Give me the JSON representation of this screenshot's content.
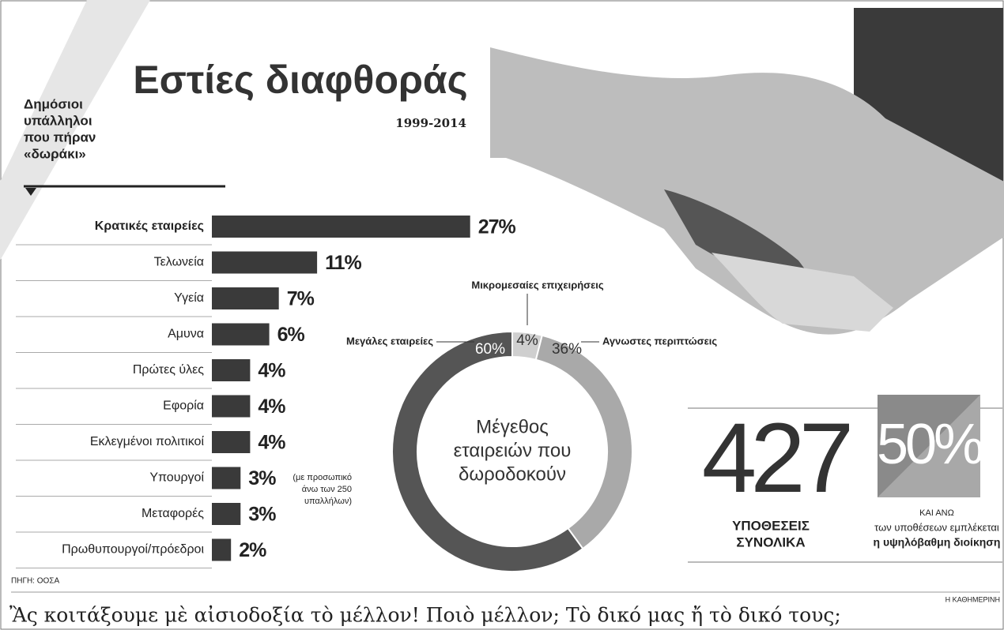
{
  "header": {
    "title": "Εστίες διαφθοράς",
    "subtitle": "1999-2014",
    "side_label": [
      "Δημόσιοι",
      "υπάλληλοι",
      "που πήραν",
      "«δωράκι»"
    ]
  },
  "chart_data": [
    {
      "type": "bar",
      "orientation": "horizontal",
      "color": "#3a3a3a",
      "categories": [
        "Κρατικές εταιρείες",
        "Τελωνεία",
        "Υγεία",
        "Αμυνα",
        "Πρώτες ύλες",
        "Εφορία",
        "Εκλεγμένοι πολιτικοί",
        "Υπουργοί",
        "Μεταφορές",
        "Πρωθυπουργοί/πρόεδροι"
      ],
      "values": [
        27,
        11,
        7,
        6,
        4,
        4,
        4,
        3,
        3,
        2
      ],
      "value_labels": [
        "27%",
        "11%",
        "7%",
        "6%",
        "4%",
        "4%",
        "4%",
        "3%",
        "3%",
        "2%"
      ]
    },
    {
      "type": "pie",
      "donut": true,
      "center_label": [
        "Μέγεθος",
        "εταιρειών που",
        "δωροδοκούν"
      ],
      "categories": [
        "Μεγάλες εταιρείες",
        "Μικρομεσαίες επιχειρήσεις",
        "Αγνωστες περιπτώσεις"
      ],
      "values": [
        60,
        4,
        36
      ],
      "value_labels": [
        "60%",
        "4%",
        "36%"
      ],
      "colors": [
        "#555555",
        "#cfcfcf",
        "#a9a9a9"
      ]
    }
  ],
  "pie_note": [
    "(με προσωπικό",
    "άνω των 250",
    "υπαλλήλων)"
  ],
  "stats": [
    {
      "value": "427",
      "label": [
        "ΥΠΟΘΕΣΕΙΣ",
        "ΣΥΝΟΛΙΚΑ"
      ]
    },
    {
      "value": "50%",
      "label": [
        "ΚΑΙ ΑΝΩ",
        "των υποθέσεων εμπλέκεται",
        "η υψηλόβαθμη διοίκηση"
      ]
    }
  ],
  "source": "ΠΗΓΗ: ΟΟΣΑ",
  "credit": "Η ΚΑΘΗΜΕΡΙΝΗ",
  "caption": "Ἂς κοιτάξουμε μὲ αἰσιοδοξία τὸ μέλλον! Ποιὸ μέλλον; Τὸ δικό μας ἤ τὸ δικό τους;"
}
